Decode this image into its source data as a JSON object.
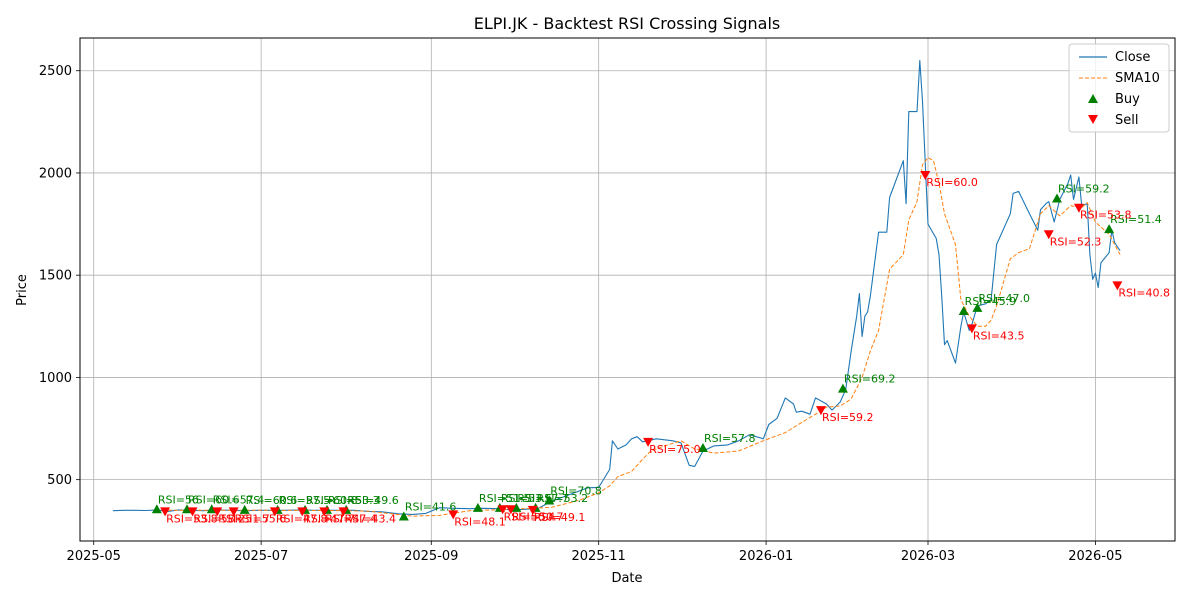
{
  "chart_data": {
    "type": "line",
    "title": "ELPI.JK - Backtest RSI Crossing Signals",
    "xlabel": "Date",
    "ylabel": "Price",
    "x_range": [
      "2025-04-26",
      "2026-05-30"
    ],
    "ylim": [
      200,
      2660
    ],
    "x_ticks": [
      {
        "date": "2025-05-01",
        "label": "2025-05"
      },
      {
        "date": "2025-07-01",
        "label": "2025-07"
      },
      {
        "date": "2025-09-01",
        "label": "2025-09"
      },
      {
        "date": "2025-11-01",
        "label": "2025-11"
      },
      {
        "date": "2026-01-01",
        "label": "2026-01"
      },
      {
        "date": "2026-03-01",
        "label": "2026-03"
      },
      {
        "date": "2026-05-01",
        "label": "2026-05"
      }
    ],
    "y_ticks": [
      500,
      1000,
      1500,
      2000,
      2500
    ],
    "grid": true,
    "legend_position": "top-right",
    "colors": {
      "close": "#1f77b4",
      "sma": "#ff7f0e",
      "buy": "#008000",
      "sell": "#ff0000",
      "grid": "#b0b0b0"
    },
    "series": [
      {
        "name": "Close",
        "style": "solid",
        "points": [
          [
            "2025-05-08",
            348
          ],
          [
            "2025-05-12",
            350
          ],
          [
            "2025-05-16",
            350
          ],
          [
            "2025-05-20",
            349
          ],
          [
            "2025-05-24",
            352
          ],
          [
            "2025-05-28",
            345
          ],
          [
            "2025-06-01",
            352
          ],
          [
            "2025-06-05",
            350
          ],
          [
            "2025-06-10",
            348
          ],
          [
            "2025-06-15",
            352
          ],
          [
            "2025-06-20",
            350
          ],
          [
            "2025-06-25",
            348
          ],
          [
            "2025-06-30",
            350
          ],
          [
            "2025-07-05",
            350
          ],
          [
            "2025-07-10",
            350
          ],
          [
            "2025-07-15",
            352
          ],
          [
            "2025-07-20",
            350
          ],
          [
            "2025-07-25",
            350
          ],
          [
            "2025-07-30",
            350
          ],
          [
            "2025-08-04",
            350
          ],
          [
            "2025-08-09",
            345
          ],
          [
            "2025-08-14",
            343
          ],
          [
            "2025-08-20",
            333
          ],
          [
            "2025-08-25",
            330
          ],
          [
            "2025-08-30",
            335
          ],
          [
            "2025-09-04",
            363
          ],
          [
            "2025-09-09",
            360
          ],
          [
            "2025-09-15",
            358
          ],
          [
            "2025-09-20",
            360
          ],
          [
            "2025-09-25",
            358
          ],
          [
            "2025-09-30",
            352
          ],
          [
            "2025-10-05",
            355
          ],
          [
            "2025-10-10",
            360
          ],
          [
            "2025-10-15",
            395
          ],
          [
            "2025-10-20",
            420
          ],
          [
            "2025-10-25",
            445
          ],
          [
            "2025-10-28",
            460
          ],
          [
            "2025-11-01",
            462
          ],
          [
            "2025-11-05",
            550
          ],
          [
            "2025-11-06",
            690
          ],
          [
            "2025-11-08",
            650
          ],
          [
            "2025-11-11",
            670
          ],
          [
            "2025-11-13",
            700
          ],
          [
            "2025-11-15",
            710
          ],
          [
            "2025-11-17",
            685
          ],
          [
            "2025-11-22",
            700
          ],
          [
            "2025-11-28",
            690
          ],
          [
            "2025-12-01",
            680
          ],
          [
            "2025-12-04",
            570
          ],
          [
            "2025-12-06",
            565
          ],
          [
            "2025-12-09",
            640
          ],
          [
            "2025-12-13",
            665
          ],
          [
            "2025-12-18",
            670
          ],
          [
            "2025-12-22",
            690
          ],
          [
            "2025-12-26",
            720
          ],
          [
            "2025-12-31",
            700
          ],
          [
            "2026-01-02",
            770
          ],
          [
            "2026-01-05",
            800
          ],
          [
            "2026-01-08",
            900
          ],
          [
            "2026-01-11",
            870
          ],
          [
            "2026-01-12",
            830
          ],
          [
            "2026-01-14",
            835
          ],
          [
            "2026-01-17",
            820
          ],
          [
            "2026-01-19",
            900
          ],
          [
            "2026-01-23",
            870
          ],
          [
            "2026-01-25",
            840
          ],
          [
            "2026-01-28",
            880
          ],
          [
            "2026-01-30",
            940
          ],
          [
            "2026-02-01",
            1130
          ],
          [
            "2026-02-03",
            1300
          ],
          [
            "2026-02-04",
            1410
          ],
          [
            "2026-02-05",
            1200
          ],
          [
            "2026-02-06",
            1300
          ],
          [
            "2026-02-07",
            1320
          ],
          [
            "2026-02-08",
            1400
          ],
          [
            "2026-02-11",
            1710
          ],
          [
            "2026-02-14",
            1710
          ],
          [
            "2026-02-15",
            1880
          ],
          [
            "2026-02-20",
            2060
          ],
          [
            "2026-02-21",
            1850
          ],
          [
            "2026-02-22",
            2300
          ],
          [
            "2026-02-25",
            2300
          ],
          [
            "2026-02-26",
            2550
          ],
          [
            "2026-02-27",
            2350
          ],
          [
            "2026-03-01",
            1750
          ],
          [
            "2026-03-04",
            1680
          ],
          [
            "2026-03-05",
            1600
          ],
          [
            "2026-03-06",
            1400
          ],
          [
            "2026-03-07",
            1160
          ],
          [
            "2026-03-08",
            1180
          ],
          [
            "2026-03-11",
            1070
          ],
          [
            "2026-03-13",
            1250
          ],
          [
            "2026-03-14",
            1320
          ],
          [
            "2026-03-16",
            1230
          ],
          [
            "2026-03-17",
            1260
          ],
          [
            "2026-03-19",
            1350
          ],
          [
            "2026-03-22",
            1360
          ],
          [
            "2026-03-24",
            1380
          ],
          [
            "2026-03-26",
            1650
          ],
          [
            "2026-03-31",
            1800
          ],
          [
            "2026-04-01",
            1900
          ],
          [
            "2026-04-03",
            1910
          ],
          [
            "2026-04-07",
            1800
          ],
          [
            "2026-04-10",
            1720
          ],
          [
            "2026-04-11",
            1820
          ],
          [
            "2026-04-13",
            1850
          ],
          [
            "2026-04-14",
            1860
          ],
          [
            "2026-04-16",
            1760
          ],
          [
            "2026-04-18",
            1870
          ],
          [
            "2026-04-21",
            1950
          ],
          [
            "2026-04-22",
            1990
          ],
          [
            "2026-04-23",
            1870
          ],
          [
            "2026-04-25",
            1980
          ],
          [
            "2026-04-26",
            1840
          ],
          [
            "2026-04-28",
            1850
          ],
          [
            "2026-04-29",
            1600
          ],
          [
            "2026-04-30",
            1480
          ],
          [
            "2026-05-01",
            1510
          ],
          [
            "2026-05-02",
            1440
          ],
          [
            "2026-05-03",
            1560
          ],
          [
            "2026-05-06",
            1610
          ],
          [
            "2026-05-07",
            1720
          ],
          [
            "2026-05-08",
            1660
          ],
          [
            "2026-05-10",
            1620
          ]
        ]
      },
      {
        "name": "SMA10",
        "style": "dashed",
        "points": [
          [
            "2025-05-28",
            350
          ],
          [
            "2025-06-15",
            350
          ],
          [
            "2025-07-05",
            350
          ],
          [
            "2025-07-25",
            349
          ],
          [
            "2025-08-09",
            346
          ],
          [
            "2025-08-25",
            322
          ],
          [
            "2025-09-04",
            325
          ],
          [
            "2025-09-15",
            348
          ],
          [
            "2025-09-30",
            355
          ],
          [
            "2025-10-15",
            365
          ],
          [
            "2025-10-25",
            400
          ],
          [
            "2025-11-01",
            435
          ],
          [
            "2025-11-05",
            470
          ],
          [
            "2025-11-08",
            515
          ],
          [
            "2025-11-13",
            540
          ],
          [
            "2025-11-17",
            600
          ],
          [
            "2025-11-20",
            640
          ],
          [
            "2025-11-25",
            665
          ],
          [
            "2025-12-01",
            690
          ],
          [
            "2025-12-06",
            650
          ],
          [
            "2025-12-13",
            630
          ],
          [
            "2025-12-22",
            640
          ],
          [
            "2025-12-31",
            690
          ],
          [
            "2026-01-08",
            730
          ],
          [
            "2026-01-14",
            780
          ],
          [
            "2026-01-19",
            820
          ],
          [
            "2026-01-23",
            855
          ],
          [
            "2026-01-28",
            860
          ],
          [
            "2026-02-01",
            895
          ],
          [
            "2026-02-05",
            1000
          ],
          [
            "2026-02-08",
            1130
          ],
          [
            "2026-02-11",
            1230
          ],
          [
            "2026-02-15",
            1530
          ],
          [
            "2026-02-20",
            1600
          ],
          [
            "2026-02-22",
            1770
          ],
          [
            "2026-02-25",
            1860
          ],
          [
            "2026-02-27",
            2040
          ],
          [
            "2026-03-01",
            2075
          ],
          [
            "2026-03-03",
            2060
          ],
          [
            "2026-03-05",
            1950
          ],
          [
            "2026-03-07",
            1800
          ],
          [
            "2026-03-11",
            1650
          ],
          [
            "2026-03-13",
            1380
          ],
          [
            "2026-03-16",
            1300
          ],
          [
            "2026-03-19",
            1250
          ],
          [
            "2026-03-22",
            1250
          ],
          [
            "2026-03-24",
            1280
          ],
          [
            "2026-03-26",
            1350
          ],
          [
            "2026-03-31",
            1580
          ],
          [
            "2026-04-03",
            1610
          ],
          [
            "2026-04-07",
            1630
          ],
          [
            "2026-04-11",
            1800
          ],
          [
            "2026-04-14",
            1840
          ],
          [
            "2026-04-18",
            1790
          ],
          [
            "2026-04-22",
            1840
          ],
          [
            "2026-04-26",
            1830
          ],
          [
            "2026-04-28",
            1855
          ],
          [
            "2026-05-01",
            1760
          ],
          [
            "2026-05-06",
            1700
          ],
          [
            "2026-05-10",
            1600
          ]
        ]
      }
    ],
    "signals": {
      "buy": [
        {
          "date": "2025-05-24",
          "price": 355,
          "label": "RSI=56"
        },
        {
          "date": "2025-06-04",
          "price": 355,
          "label": "RSI=60.6"
        },
        {
          "date": "2025-06-13",
          "price": 355,
          "label": "RSI=57.4"
        },
        {
          "date": "2025-06-25",
          "price": 352,
          "label": "RSI=60.6"
        },
        {
          "date": "2025-07-07",
          "price": 352,
          "label": "RSI=57.5"
        },
        {
          "date": "2025-07-17",
          "price": 352,
          "label": "RSI=60.8"
        },
        {
          "date": "2025-07-25",
          "price": 352,
          "label": "RSI=53.3"
        },
        {
          "date": "2025-08-01",
          "price": 352,
          "label": "RSI=49.6"
        },
        {
          "date": "2025-08-22",
          "price": 320,
          "label": "RSI=41.6"
        },
        {
          "date": "2025-09-18",
          "price": 362,
          "label": "RSI=51.5"
        },
        {
          "date": "2025-09-26",
          "price": 362,
          "label": "RSI=53.6"
        },
        {
          "date": "2025-10-02",
          "price": 362,
          "label": "RSI=57.7"
        },
        {
          "date": "2025-10-09",
          "price": 362,
          "label": "RSI=53.2"
        },
        {
          "date": "2025-10-14",
          "price": 398,
          "label": "RSI=70.8"
        },
        {
          "date": "2025-12-09",
          "price": 655,
          "label": "RSI=57.8"
        },
        {
          "date": "2026-01-29",
          "price": 945,
          "label": "RSI=69.2"
        },
        {
          "date": "2026-03-14",
          "price": 1325,
          "label": "RSI=45.9"
        },
        {
          "date": "2026-03-19",
          "price": 1340,
          "label": "RSI=47.0"
        },
        {
          "date": "2026-04-17",
          "price": 1875,
          "label": "RSI=59.2"
        },
        {
          "date": "2026-05-06",
          "price": 1725,
          "label": "RSI=51.4"
        }
      ],
      "sell": [
        {
          "date": "2025-05-27",
          "price": 345,
          "label": "RSI=53.8"
        },
        {
          "date": "2025-06-06",
          "price": 345,
          "label": "RSI=58.2"
        },
        {
          "date": "2025-06-15",
          "price": 345,
          "label": "RSI=51.7"
        },
        {
          "date": "2025-06-21",
          "price": 345,
          "label": "RSI=55.6"
        },
        {
          "date": "2025-07-06",
          "price": 345,
          "label": "RSI=47.8"
        },
        {
          "date": "2025-07-16",
          "price": 345,
          "label": "RSI=47.7"
        },
        {
          "date": "2025-07-24",
          "price": 345,
          "label": "RSI=47.4"
        },
        {
          "date": "2025-07-31",
          "price": 345,
          "label": "RSI=43.4"
        },
        {
          "date": "2025-09-09",
          "price": 330,
          "label": "RSI=48.1"
        },
        {
          "date": "2025-09-27",
          "price": 355,
          "label": "RSI=50.4"
        },
        {
          "date": "2025-09-30",
          "price": 355,
          "label": "RSI=50.7"
        },
        {
          "date": "2025-10-08",
          "price": 352,
          "label": "RSI=49.1"
        },
        {
          "date": "2025-11-19",
          "price": 685,
          "label": "RSI=75.0"
        },
        {
          "date": "2026-01-21",
          "price": 840,
          "label": "RSI=59.2"
        },
        {
          "date": "2026-02-28",
          "price": 1990,
          "label": "RSI=60.0"
        },
        {
          "date": "2026-03-17",
          "price": 1240,
          "label": "RSI=43.5"
        },
        {
          "date": "2026-04-14",
          "price": 1700,
          "label": "RSI=52.3"
        },
        {
          "date": "2026-04-25",
          "price": 1830,
          "label": "RSI=53.8"
        },
        {
          "date": "2026-05-09",
          "price": 1450,
          "label": "RSI=40.8"
        }
      ]
    },
    "legend": [
      {
        "key": "close",
        "label": "Close"
      },
      {
        "key": "sma",
        "label": "SMA10"
      },
      {
        "key": "buy",
        "label": "Buy"
      },
      {
        "key": "sell",
        "label": "Sell"
      }
    ]
  }
}
